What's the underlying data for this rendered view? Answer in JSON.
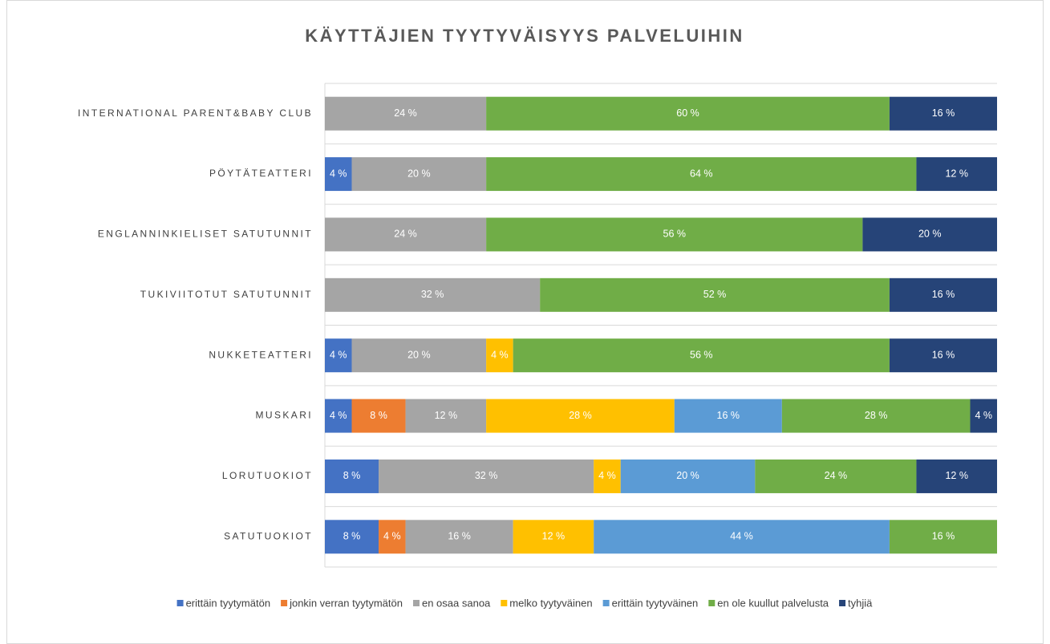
{
  "chart_data": {
    "type": "stacked_barh",
    "title": "KÄYTTÄJIEN TYYTYVÄISYYS PALVELUIHIN",
    "categories": [
      "INTERNATIONAL PARENT&BABY CLUB",
      "PÖYTÄTEATTERI",
      "ENGLANNINKIELISET SATUTUNNIT",
      "TUKIVIITOTUT SATUTUNNIT",
      "NUKKETEATTERI",
      "MUSKARI",
      "LORUTUOKIOT",
      "SATUTUOKIOT"
    ],
    "xlim": [
      0,
      100
    ],
    "series": [
      {
        "name": "erittäin tyytymätön",
        "color": "#4472c4",
        "values": [
          null,
          4,
          null,
          null,
          4,
          4,
          8,
          8
        ],
        "value_labels": [
          null,
          "4 %",
          null,
          null,
          "4 %",
          "4 %",
          "8 %",
          "8 %"
        ]
      },
      {
        "name": "jonkin verran tyytymätön",
        "color": "#ed7d31",
        "values": [
          null,
          null,
          null,
          null,
          null,
          8,
          null,
          4
        ],
        "value_labels": [
          null,
          null,
          null,
          null,
          null,
          "8 %",
          null,
          "4 %"
        ]
      },
      {
        "name": "en osaa sanoa",
        "color": "#a5a5a5",
        "values": [
          24,
          20,
          24,
          32,
          20,
          12,
          32,
          16
        ],
        "value_labels": [
          "24 %",
          "20 %",
          "24 %",
          "32 %",
          "20 %",
          "12 %",
          "32 %",
          "16 %"
        ]
      },
      {
        "name": "melko tyytyväinen",
        "color": "#ffc000",
        "values": [
          null,
          null,
          null,
          null,
          4,
          28,
          4,
          12
        ],
        "value_labels": [
          null,
          null,
          null,
          null,
          "4 %",
          "28 %",
          "4 %",
          "12 %"
        ]
      },
      {
        "name": "erittäin tyytyväinen",
        "color": "#5b9bd5",
        "values": [
          null,
          null,
          null,
          null,
          null,
          16,
          20,
          44
        ],
        "value_labels": [
          null,
          null,
          null,
          null,
          null,
          "16 %",
          "20 %",
          "44 %"
        ]
      },
      {
        "name": "en ole kuullut palvelusta",
        "color": "#70ad47",
        "values": [
          60,
          64,
          56,
          52,
          56,
          28,
          24,
          16
        ],
        "value_labels": [
          "60 %",
          "64 %",
          "56 %",
          "52 %",
          "56 %",
          "28 %",
          "24 %",
          "16 %"
        ]
      },
      {
        "name": "tyhjiä",
        "color": "#264478",
        "values": [
          16,
          12,
          20,
          16,
          16,
          4,
          12,
          null
        ],
        "value_labels": [
          "16 %",
          "12 %",
          "20 %",
          "16 %",
          "16 %",
          "4 %",
          "12 %",
          null
        ]
      }
    ]
  }
}
